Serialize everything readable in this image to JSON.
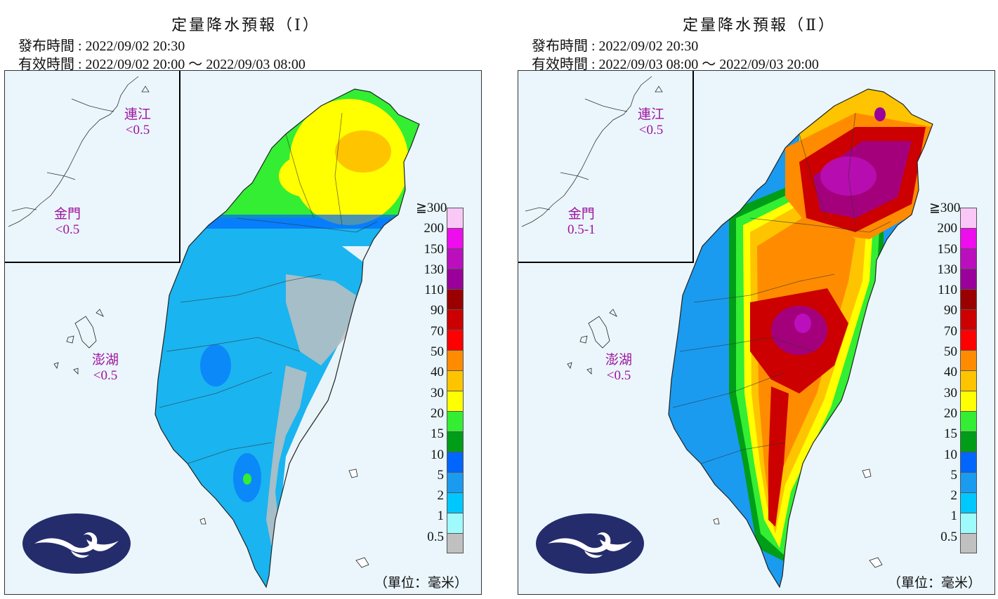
{
  "panels": [
    {
      "title": "定量降水預報（Ⅰ）",
      "issued": "發布時間 : 2022/09/02 20:30",
      "valid": "有效時間 : 2022/09/02 20:00 ～ 2022/09/03 08:00",
      "islands": {
        "lienchiang": {
          "name": "連江",
          "value": "<0.5"
        },
        "kinmen": {
          "name": "金門",
          "value": "<0.5"
        },
        "penghu": {
          "name": "澎湖",
          "value": "<0.5"
        }
      }
    },
    {
      "title": "定量降水預報（Ⅱ）",
      "issued": "發布時間 : 2022/09/02 20:30",
      "valid": "有效時間 : 2022/09/03 08:00 ～ 2022/09/03 20:00",
      "islands": {
        "lienchiang": {
          "name": "連江",
          "value": "<0.5"
        },
        "kinmen": {
          "name": "金門",
          "value": "0.5-1"
        },
        "penghu": {
          "name": "澎湖",
          "value": "<0.5"
        }
      }
    }
  ],
  "legend": {
    "labels": [
      "≧300",
      "200",
      "150",
      "130",
      "110",
      "90",
      "70",
      "50",
      "40",
      "30",
      "20",
      "15",
      "10",
      "5",
      "2",
      "1",
      "0.5"
    ],
    "colors": [
      "#f9c8f7",
      "#ee0ded",
      "#bb0fbe",
      "#9a009a",
      "#9b0000",
      "#cc0000",
      "#ff0000",
      "#ff8c00",
      "#ffc400",
      "#ffff00",
      "#33ee33",
      "#009d18",
      "#0066ff",
      "#1a9bf0",
      "#00c8ff",
      "#9ffafc",
      "#c0c0c0"
    ]
  },
  "unit": "（單位：毫米）",
  "logo_icon": "cwb-logo-icon"
}
